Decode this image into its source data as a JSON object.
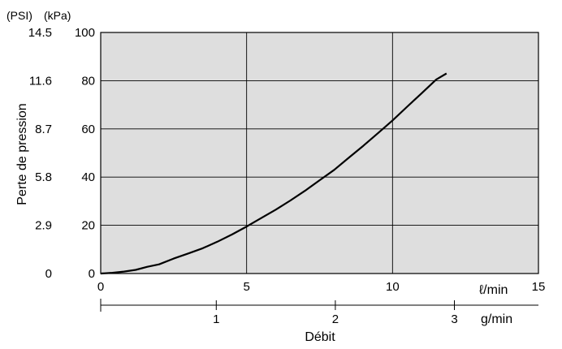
{
  "chart_data": {
    "type": "line",
    "title": "",
    "xlabel": "Débit",
    "ylabel": "Perte de pression",
    "y_unit_psi": "(PSI)",
    "y_unit_kpa": "(kPa)",
    "x_unit_lmin": "ℓ/min",
    "x_unit_gmin": "g/min",
    "xlim": [
      0,
      15
    ],
    "ylim": [
      0,
      100
    ],
    "grid": true,
    "plot_background": "#dedede",
    "line_color": "#000000",
    "x_ticks_lmin": [
      "0",
      "5",
      "10",
      "15"
    ],
    "x_ticks_gmin": [
      "1",
      "2",
      "3"
    ],
    "x_ticks_gmin_values_lmin": [
      3.96,
      8.04,
      12.12
    ],
    "y_ticks_kpa": [
      "0",
      "20",
      "40",
      "60",
      "80",
      "100"
    ],
    "y_ticks_psi": [
      "0",
      "2.9",
      "5.8",
      "8.7",
      "11.6",
      "14.5"
    ],
    "series": [
      {
        "name": "",
        "x": [
          0,
          0.4,
          0.8,
          1.2,
          1.6,
          2.0,
          2.5,
          3.0,
          3.5,
          4.0,
          4.5,
          5.0,
          5.5,
          6.0,
          6.5,
          7.0,
          7.5,
          8.0,
          8.5,
          9.0,
          9.5,
          10.0,
          10.5,
          11.0,
          11.5,
          11.85
        ],
        "y": [
          0,
          0.3,
          0.8,
          1.5,
          2.8,
          3.8,
          6.2,
          8.3,
          10.5,
          13.2,
          16.2,
          19.5,
          23.0,
          26.5,
          30.3,
          34.3,
          38.7,
          43.0,
          48.0,
          53.0,
          58.2,
          63.5,
          69.2,
          74.8,
          80.5,
          83.0
        ]
      }
    ]
  }
}
